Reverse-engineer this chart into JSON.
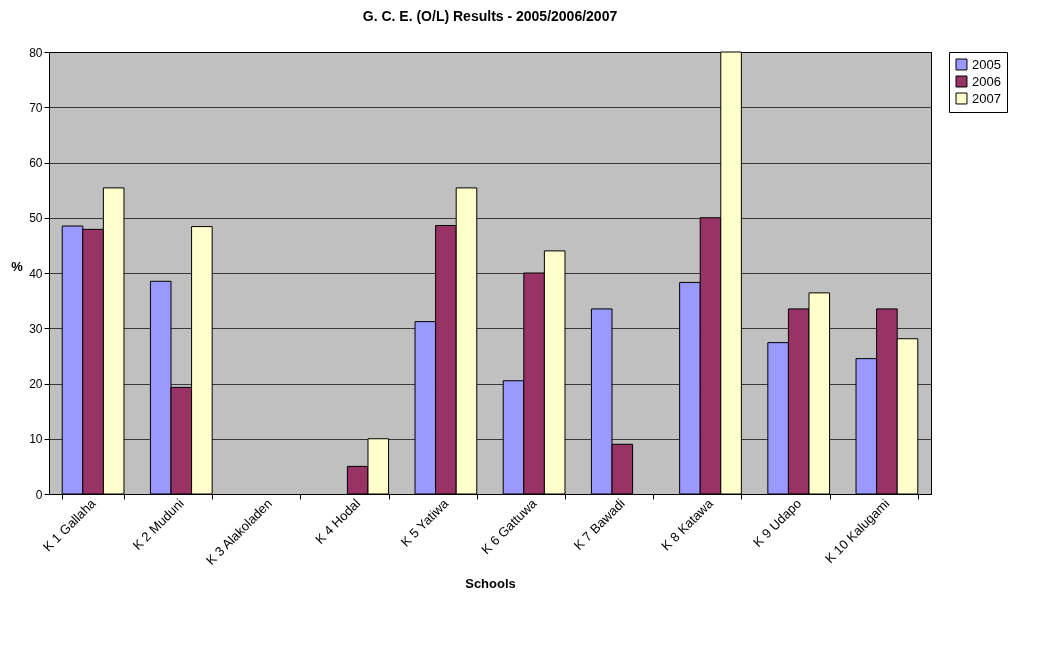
{
  "chart_data": {
    "type": "bar",
    "title": "G. C. E. (O/L) Results - 2005/2006/2007",
    "xlabel": "Schools",
    "ylabel": "%",
    "categories": [
      "K 1 Gallaha",
      "K 2 Muduni",
      "K 3 Alakoladen",
      "K 4 Hodal",
      "K 5 Yatiwa",
      "K 6 Gattuwa",
      "K 7 Bawadi",
      "K 8 Katawa",
      "K 9 Udapo",
      "K 10 Kalugami"
    ],
    "series": [
      {
        "name": "2005",
        "color": "#9999ff",
        "values": [
          48.5,
          38.5,
          null,
          null,
          31.2,
          20.5,
          33.5,
          38.3,
          27.4,
          24.5
        ]
      },
      {
        "name": "2006",
        "color": "#993366",
        "values": [
          47.9,
          19.3,
          null,
          5,
          48.6,
          40,
          9,
          50,
          33.5,
          33.5
        ]
      },
      {
        "name": "2007",
        "color": "#ffffcc",
        "values": [
          55.4,
          48.4,
          null,
          10,
          55.4,
          44,
          null,
          80,
          36.4,
          28.1
        ]
      }
    ],
    "ylim": [
      0,
      80
    ],
    "yticks": [
      0,
      10,
      20,
      30,
      40,
      50,
      60,
      70,
      80
    ],
    "grid": "y",
    "legend": "right"
  }
}
